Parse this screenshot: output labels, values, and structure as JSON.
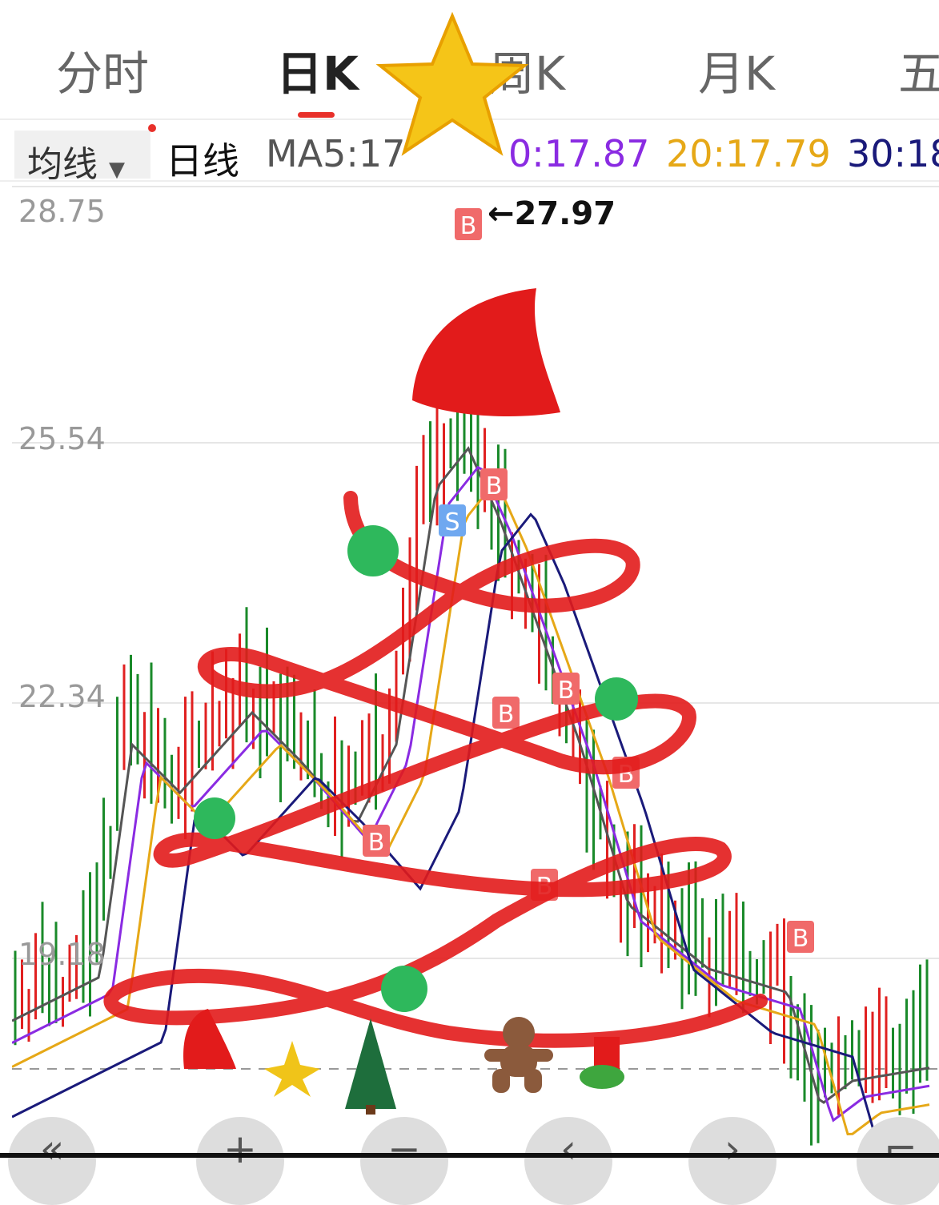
{
  "tabs": [
    {
      "label": "分时"
    },
    {
      "label": "日K",
      "active": true
    },
    {
      "label": "周K"
    },
    {
      "label": "月K"
    },
    {
      "label": "五"
    }
  ],
  "toolbar": {
    "ma_select": "均线",
    "period": "日线",
    "ma5": "MA5:17",
    "ma10": "0:17.87",
    "ma20": "20:17.79",
    "ma30": "30:18"
  },
  "colors": {
    "up": "#e02020",
    "down": "#1a8a2a",
    "ma5": "#555555",
    "ma10": "#8a2be2",
    "ma20": "#e6a817",
    "ma30": "#1a1a7a",
    "accent": "#e8302a"
  },
  "chart_data": {
    "type": "candlestick",
    "y_ticks": [
      "28.75",
      "25.54",
      "22.34",
      "19.18"
    ],
    "ylim": [
      16.5,
      29.0
    ],
    "max_label": "←27.97",
    "markers": [
      "B",
      "S",
      "B",
      "B",
      "B",
      "B",
      "B",
      "B",
      "B"
    ]
  },
  "bottom_buttons": [
    {
      "icon": "double-left-icon",
      "glyph": "«"
    },
    {
      "icon": "zoom-in-icon",
      "glyph": "+"
    },
    {
      "icon": "zoom-out-icon",
      "glyph": "−"
    },
    {
      "icon": "left-icon",
      "glyph": "‹"
    },
    {
      "icon": "right-icon",
      "glyph": "›"
    },
    {
      "icon": "fullscreen-icon",
      "glyph": "⌐"
    }
  ]
}
